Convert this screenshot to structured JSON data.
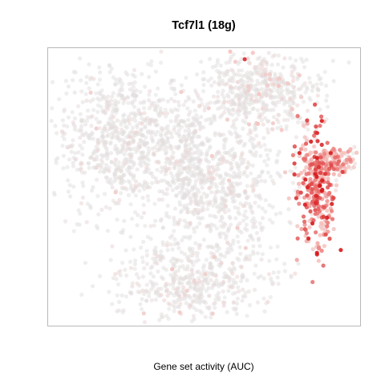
{
  "chart_data": {
    "type": "scatter",
    "title": "Tcf7l1 (18g)",
    "xlabel": "Gene set activity (AUC)",
    "ylabel": "",
    "axes_shown": false,
    "grid": false,
    "legend": "none",
    "xlim": [
      0,
      100
    ],
    "ylim": [
      0,
      100
    ],
    "colors": {
      "low": "#e2e2e2",
      "mid": "#f7c1bd",
      "high": "#d7191c",
      "frame": "#b8b8b8"
    },
    "clusters": [
      {
        "name": "left-mass",
        "cx": 26,
        "cy": 66,
        "sx": 12,
        "sy": 14,
        "n": 900,
        "score_mean": 0.1,
        "score_sd": 0.1
      },
      {
        "name": "upper-middle-mass",
        "cx": 68,
        "cy": 85,
        "sx": 9,
        "sy": 7,
        "n": 520,
        "score_mean": 0.15,
        "score_sd": 0.12
      },
      {
        "name": "central-streak",
        "cx": 46,
        "cy": 57,
        "sx": 4,
        "sy": 12,
        "n": 260,
        "score_mean": 0.08,
        "score_sd": 0.08
      },
      {
        "name": "middle-right-mass",
        "cx": 59,
        "cy": 51,
        "sx": 8,
        "sy": 12,
        "n": 420,
        "score_mean": 0.12,
        "score_sd": 0.1
      },
      {
        "name": "bottom-mass",
        "cx": 46,
        "cy": 17,
        "sx": 12,
        "sy": 8,
        "n": 520,
        "score_mean": 0.12,
        "score_sd": 0.11
      },
      {
        "name": "right-active-cluster",
        "cx": 86,
        "cy": 48,
        "sx": 3.5,
        "sy": 11,
        "n": 300,
        "score_mean": 0.65,
        "score_sd": 0.22
      },
      {
        "name": "right-active-upper-arm",
        "cx": 91,
        "cy": 59,
        "sx": 4,
        "sy": 2.5,
        "n": 140,
        "score_mean": 0.45,
        "score_sd": 0.22
      }
    ],
    "highlights": [
      {
        "x": 63,
        "y": 96,
        "score": 0.95
      }
    ]
  }
}
